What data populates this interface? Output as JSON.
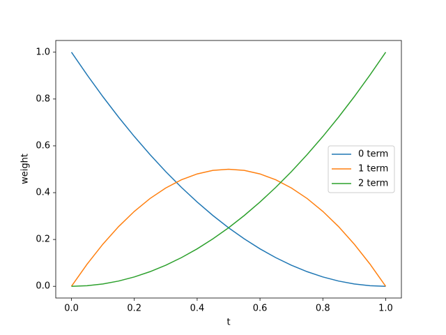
{
  "chart_data": {
    "type": "line",
    "x_label": "t",
    "y_label": "weight",
    "x": [
      0,
      0.05,
      0.1,
      0.15,
      0.2,
      0.25,
      0.3,
      0.35,
      0.4,
      0.45,
      0.5,
      0.55,
      0.6,
      0.65,
      0.7,
      0.75,
      0.8,
      0.85,
      0.9,
      0.95,
      1
    ],
    "series": [
      {
        "name": "0 term",
        "color": "#1f77b4",
        "values": [
          1,
          0.9025,
          0.81,
          0.7225,
          0.64,
          0.5625,
          0.49,
          0.4225,
          0.36,
          0.3025,
          0.25,
          0.2025,
          0.16,
          0.1225,
          0.09,
          0.0625,
          0.04,
          0.0225,
          0.01,
          0.0025,
          0
        ]
      },
      {
        "name": "1 term",
        "color": "#ff7f0e",
        "values": [
          0,
          0.095,
          0.18,
          0.255,
          0.32,
          0.375,
          0.42,
          0.455,
          0.48,
          0.495,
          0.5,
          0.495,
          0.48,
          0.455,
          0.42,
          0.375,
          0.32,
          0.255,
          0.18,
          0.095,
          0
        ]
      },
      {
        "name": "2 term",
        "color": "#2ca02c",
        "values": [
          0,
          0.0025,
          0.01,
          0.0225,
          0.04,
          0.0625,
          0.09,
          0.1225,
          0.16,
          0.2025,
          0.25,
          0.3025,
          0.36,
          0.4225,
          0.49,
          0.5625,
          0.64,
          0.7225,
          0.81,
          0.9025,
          1
        ]
      }
    ],
    "xlim": [
      -0.05,
      1.05
    ],
    "ylim": [
      -0.05,
      1.05
    ],
    "xticks": [
      {
        "value": 0,
        "label": "0.0"
      },
      0.2,
      0.4,
      0.6,
      0.8,
      {
        "value": 1,
        "label": "1.0"
      }
    ],
    "yticks": [
      {
        "value": 0,
        "label": "0.0"
      },
      0.2,
      0.4,
      0.6,
      0.8,
      {
        "value": 1,
        "label": "1.0"
      }
    ],
    "grid": false,
    "legend": "center right"
  }
}
